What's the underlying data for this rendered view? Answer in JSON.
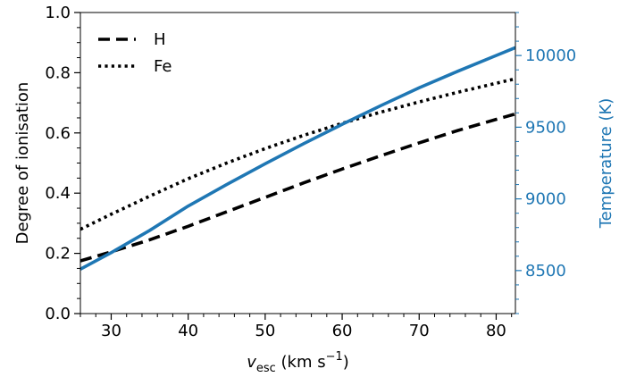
{
  "chart_data": {
    "type": "line",
    "title": "",
    "xlabel": {
      "symbol": "v",
      "subscript": "esc",
      "units_prefix": "(km s",
      "units_exponent": "−1",
      "units_suffix": ")"
    },
    "ylabel_left": "Degree of ionisation",
    "ylabel_right": "Temperature (K)",
    "xlim": [
      26,
      82.5
    ],
    "ylim_left": [
      0.0,
      1.0
    ],
    "ylim_right": [
      8200,
      10300
    ],
    "x_ticks": [
      30,
      40,
      50,
      60,
      70,
      80
    ],
    "x_tick_labels": [
      "30",
      "40",
      "50",
      "60",
      "70",
      "80"
    ],
    "x_minor_step": 2,
    "left_ticks": [
      0.0,
      0.2,
      0.4,
      0.6,
      0.8,
      1.0
    ],
    "left_tick_labels": [
      "0.0",
      "0.2",
      "0.4",
      "0.6",
      "0.8",
      "1.0"
    ],
    "left_minor_step": 0.05,
    "right_ticks": [
      8500,
      9000,
      9500,
      10000
    ],
    "right_tick_labels": [
      "8500",
      "9000",
      "9500",
      "10000"
    ],
    "right_minor_step": 100,
    "legend_position": "top-left",
    "right_axis_color": "#1f77b4",
    "grid": false,
    "series": [
      {
        "name": "H",
        "axis": "left",
        "style": "dashed",
        "color": "#000000",
        "x": [
          26,
          30,
          35,
          40,
          45,
          50,
          55,
          60,
          65,
          70,
          75,
          80,
          82.5
        ],
        "y": [
          0.175,
          0.205,
          0.245,
          0.29,
          0.338,
          0.386,
          0.434,
          0.48,
          0.524,
          0.567,
          0.608,
          0.645,
          0.663
        ]
      },
      {
        "name": "Fe",
        "axis": "left",
        "style": "dotted",
        "color": "#000000",
        "x": [
          26,
          30,
          35,
          40,
          45,
          50,
          55,
          60,
          65,
          70,
          75,
          80,
          82.5
        ],
        "y": [
          0.28,
          0.33,
          0.39,
          0.448,
          0.5,
          0.548,
          0.592,
          0.632,
          0.669,
          0.703,
          0.735,
          0.765,
          0.78
        ]
      },
      {
        "axis": "right",
        "style": "solid",
        "color": "#1f77b4",
        "x": [
          26,
          30,
          35,
          40,
          45,
          50,
          55,
          60,
          65,
          70,
          75,
          80,
          82.5
        ],
        "y": [
          8510,
          8625,
          8780,
          8950,
          9100,
          9245,
          9385,
          9520,
          9650,
          9775,
          9890,
          10000,
          10055
        ]
      }
    ]
  }
}
